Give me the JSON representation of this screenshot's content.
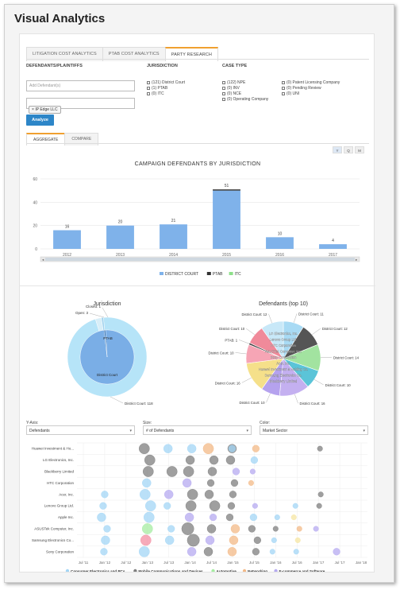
{
  "app": {
    "title": "Visual Analytics"
  },
  "tabs": [
    {
      "label": "LITIGATION COST ANALYTICS",
      "active": false
    },
    {
      "label": "PTAB COST ANALYTICS",
      "active": false
    },
    {
      "label": "PARTY RESEARCH",
      "active": true
    }
  ],
  "filters": {
    "defendants_heading": "DEFENDANTS/PLAINTIFFS",
    "jurisdiction_heading": "JURISDICTION",
    "case_type_heading": "CASE TYPE",
    "add_placeholder": "Add Defendant(s)",
    "selected_party": "IP Edge LLC",
    "chip_remove": "×",
    "jurisdiction_options": [
      "(121) District Court",
      "(1) PTAB",
      "(0) ITC"
    ],
    "case_type_col1": [
      "(122) NPE",
      "(0) INV",
      "(0) NCE",
      "(0) Operating Company"
    ],
    "case_type_col2": [
      "(0) Patent Licensing Company",
      "(0) Pending Review",
      "(0) UNI"
    ],
    "analyze_label": "Analyze"
  },
  "subtabs": [
    {
      "label": "AGGREGATE",
      "active": true
    },
    {
      "label": "COMPARE",
      "active": false
    }
  ],
  "period_buttons": [
    "Y",
    "Q",
    "M"
  ],
  "bar_chart": {
    "title": "CAMPAIGN DEFENDANTS BY JURISDICTION",
    "legend": [
      "DISTRICT COURT",
      "PTAB",
      "ITC"
    ]
  },
  "pie_left": {
    "title": "Jurisdiction"
  },
  "pie_right": {
    "title": "Defendants (top 10)"
  },
  "bubble_controls": {
    "y_axis_label": "Y-Axis:",
    "y_axis_value": "Defendants",
    "size_label": "Size:",
    "size_value": "# of Defendants",
    "color_label": "Color:",
    "color_value": "Market Sector"
  },
  "colors": {
    "district": "#7fb2ea",
    "ptab": "#333333",
    "itc": "#8ee08a",
    "pie_outer": "#b6e4f8",
    "pie_inner": "#7aaee6"
  },
  "chart_data": [
    {
      "type": "bar",
      "title": "CAMPAIGN DEFENDANTS BY JURISDICTION",
      "categories": [
        "2012",
        "2013",
        "2014",
        "2015",
        "2016",
        "2017"
      ],
      "series": [
        {
          "name": "DISTRICT COURT",
          "values": [
            16,
            20,
            21,
            50,
            10,
            4
          ]
        },
        {
          "name": "PTAB",
          "values": [
            0,
            0,
            0,
            1,
            0,
            0
          ]
        },
        {
          "name": "ITC",
          "values": [
            0,
            0,
            0,
            0,
            0,
            0
          ]
        }
      ],
      "totals": [
        "16",
        "20",
        "21",
        "51",
        "10",
        "4"
      ],
      "y_ticks": [
        "0",
        "20",
        "40",
        "60"
      ],
      "ylim": [
        0,
        60
      ],
      "legend_position": "bottom"
    },
    {
      "type": "pie",
      "title": "Jurisdiction",
      "outer": [
        {
          "label": "District Court: 118",
          "value": 118
        },
        {
          "label": "Open: 3",
          "value": 3
        },
        {
          "label": "Closed: 1",
          "value": 1
        }
      ],
      "inner": [
        {
          "label": "District Court",
          "value": 121
        },
        {
          "label": "PTAB",
          "value": 1
        }
      ]
    },
    {
      "type": "pie",
      "title": "Defendants (top 10)",
      "slices": [
        {
          "label": "District Court: 11",
          "value": 11,
          "color": "#a8daf4",
          "inner": ""
        },
        {
          "label": "District Court: 12",
          "value": 12,
          "color": "#555555",
          "inner": "LG Electronics, Inc."
        },
        {
          "label": "District Court: 14",
          "value": 14,
          "color": "#a2e3a0",
          "inner": "Lenovo Group Ltd."
        },
        {
          "label": "District Court: 10",
          "value": 10,
          "color": "#5bc4d8",
          "inner": "HTC Corporation"
        },
        {
          "label": "District Court: 16",
          "value": 16,
          "color": "#c4b0f0",
          "inner": "ASUSTek Computer, Inc."
        },
        {
          "label": "District Court: 10",
          "value": 10,
          "color": "#b5a2ee",
          "inner": "Sony Corporation"
        },
        {
          "label": "District Court: 16",
          "value": 16,
          "color": "#f5e08a",
          "inner": "Acer, Inc."
        },
        {
          "label": "District Court: 10",
          "value": 10,
          "color": "#f6a5b5",
          "inner": "Huawei Investment & Holding Co."
        },
        {
          "label": "PTAB: 1",
          "value": 1,
          "color": "#444444",
          "inner": ""
        },
        {
          "label": "District Court: 10",
          "value": 10,
          "color": "#f08a9a",
          "inner": "Samsung Electronics Co."
        },
        {
          "label": "District Court: 12",
          "value": 12,
          "color": "#c8e8f8",
          "inner": "Blackberry Limited"
        }
      ]
    },
    {
      "type": "scatter",
      "x_ticks": [
        "Jul '11",
        "Jan '12",
        "Jul '12",
        "Jan '13",
        "Jul '13",
        "Jan '14",
        "Jul '14",
        "Jan '15",
        "Jul '15",
        "Jan '16",
        "Jul '16",
        "Jan '17",
        "Jul '17",
        "Jan '18"
      ],
      "categories": [
        "Huawei Investment & Ho...",
        "LG Electronics, Inc.",
        "Blackberry Limited",
        "HTC Corporation",
        "Acer, Inc.",
        "Lenovo Group Ltd.",
        "Apple Inc.",
        "ASUSTek Computer, Inc.",
        "Samsung Electronics Co...",
        "Sony Corporation"
      ],
      "series": [
        {
          "name": "Consumer Electronics and PCs",
          "color": "#a3d5f5"
        },
        {
          "name": "Mobile Communications and Devices",
          "color": "#7f7f7f"
        },
        {
          "name": "Automotive",
          "color": "#a6eca2"
        },
        {
          "name": "Networking",
          "color": "#f3b987"
        },
        {
          "name": "E-commerce and Software",
          "color": "#b5aaf0"
        },
        {
          "name": "Media Content and Distribution",
          "color": "#f48fa3"
        },
        {
          "name": "Semiconductors",
          "color": "#f6e6a3"
        }
      ],
      "points": [
        {
          "x": "Jan '13",
          "row": 0,
          "size": 6,
          "sector": 1
        },
        {
          "x": "Jul '13",
          "row": 0,
          "size": 5,
          "sector": 0
        },
        {
          "x": "Jan '14",
          "row": 0,
          "size": 5,
          "sector": 0
        },
        {
          "x": "Jul '14",
          "row": 0,
          "size": 6,
          "sector": 3
        },
        {
          "x": "Jan '15",
          "row": 0,
          "size": 5,
          "sector": 1
        },
        {
          "x": "Jan '15",
          "row": 0,
          "size": 4,
          "sector": 0
        },
        {
          "x": "Jul '15",
          "row": 0,
          "size": 4,
          "sector": 3
        },
        {
          "x": "Jan '17",
          "row": 0,
          "size": 3,
          "sector": 1
        },
        {
          "x": "Jan '13",
          "row": 1,
          "size": 6,
          "sector": 1
        },
        {
          "x": "Jan '14",
          "row": 1,
          "size": 5,
          "sector": 1
        },
        {
          "x": "Jul '14",
          "row": 1,
          "size": 5,
          "sector": 1
        },
        {
          "x": "Jan '15",
          "row": 1,
          "size": 5,
          "sector": 1
        },
        {
          "x": "Jul '15",
          "row": 1,
          "size": 4,
          "sector": 0
        },
        {
          "x": "Jan '13",
          "row": 2,
          "size": 6,
          "sector": 1
        },
        {
          "x": "Jul '13",
          "row": 2,
          "size": 6,
          "sector": 1
        },
        {
          "x": "Jan '14",
          "row": 2,
          "size": 6,
          "sector": 1
        },
        {
          "x": "Jul '14",
          "row": 2,
          "size": 5,
          "sector": 1
        },
        {
          "x": "Jan '15",
          "row": 2,
          "size": 4,
          "sector": 4
        },
        {
          "x": "Jul '15",
          "row": 2,
          "size": 3,
          "sector": 4
        },
        {
          "x": "Jan '13",
          "row": 3,
          "size": 5,
          "sector": 0
        },
        {
          "x": "Jan '14",
          "row": 3,
          "size": 5,
          "sector": 4
        },
        {
          "x": "Jul '14",
          "row": 3,
          "size": 4,
          "sector": 1
        },
        {
          "x": "Jan '15",
          "row": 3,
          "size": 4,
          "sector": 1
        },
        {
          "x": "Jul '15",
          "row": 3,
          "size": 3,
          "sector": 3
        },
        {
          "x": "Jan '12",
          "row": 4,
          "size": 4,
          "sector": 0
        },
        {
          "x": "Jan '13",
          "row": 4,
          "size": 6,
          "sector": 0
        },
        {
          "x": "Jul '13",
          "row": 4,
          "size": 5,
          "sector": 4
        },
        {
          "x": "Jan '14",
          "row": 4,
          "size": 6,
          "sector": 1
        },
        {
          "x": "Jul '14",
          "row": 4,
          "size": 5,
          "sector": 1
        },
        {
          "x": "Jan '15",
          "row": 4,
          "size": 4,
          "sector": 1
        },
        {
          "x": "Jan '17",
          "row": 4,
          "size": 3,
          "sector": 1
        },
        {
          "x": "Jan '12",
          "row": 5,
          "size": 4,
          "sector": 0
        },
        {
          "x": "Jan '13",
          "row": 5,
          "size": 6,
          "sector": 0
        },
        {
          "x": "Jul '13",
          "row": 5,
          "size": 4,
          "sector": 0
        },
        {
          "x": "Jan '14",
          "row": 5,
          "size": 6,
          "sector": 1
        },
        {
          "x": "Jul '14",
          "row": 5,
          "size": 6,
          "sector": 1
        },
        {
          "x": "Jan '15",
          "row": 5,
          "size": 4,
          "sector": 1
        },
        {
          "x": "Jul '15",
          "row": 5,
          "size": 3,
          "sector": 4
        },
        {
          "x": "Jul '16",
          "row": 5,
          "size": 3,
          "sector": 0
        },
        {
          "x": "Jan '17",
          "row": 5,
          "size": 3,
          "sector": 1
        },
        {
          "x": "Jan '12",
          "row": 6,
          "size": 5,
          "sector": 0
        },
        {
          "x": "Jan '13",
          "row": 6,
          "size": 6,
          "sector": 0
        },
        {
          "x": "Jan '14",
          "row": 6,
          "size": 5,
          "sector": 4
        },
        {
          "x": "Jul '14",
          "row": 6,
          "size": 4,
          "sector": 4
        },
        {
          "x": "Jan '15",
          "row": 6,
          "size": 4,
          "sector": 1
        },
        {
          "x": "Jul '15",
          "row": 6,
          "size": 4,
          "sector": 0
        },
        {
          "x": "Jan '16",
          "row": 6,
          "size": 3,
          "sector": 0
        },
        {
          "x": "Jul '16",
          "row": 6,
          "size": 3,
          "sector": 6
        },
        {
          "x": "Jan '12",
          "row": 7,
          "size": 4,
          "sector": 0
        },
        {
          "x": "Jan '13",
          "row": 7,
          "size": 6,
          "sector": 2
        },
        {
          "x": "Jul '13",
          "row": 7,
          "size": 4,
          "sector": 0
        },
        {
          "x": "Jan '14",
          "row": 7,
          "size": 7,
          "sector": 1
        },
        {
          "x": "Jul '14",
          "row": 7,
          "size": 5,
          "sector": 1
        },
        {
          "x": "Jan '15",
          "row": 7,
          "size": 5,
          "sector": 3
        },
        {
          "x": "Jul '15",
          "row": 7,
          "size": 4,
          "sector": 1
        },
        {
          "x": "Jan '16",
          "row": 7,
          "size": 3,
          "sector": 1
        },
        {
          "x": "Jul '16",
          "row": 7,
          "size": 3,
          "sector": 3
        },
        {
          "x": "Jan '17",
          "row": 7,
          "size": 3,
          "sector": 4
        },
        {
          "x": "Jan '12",
          "row": 8,
          "size": 5,
          "sector": 0
        },
        {
          "x": "Jan '13",
          "row": 8,
          "size": 6,
          "sector": 5
        },
        {
          "x": "Jul '13",
          "row": 8,
          "size": 5,
          "sector": 0
        },
        {
          "x": "Jan '14",
          "row": 8,
          "size": 7,
          "sector": 1
        },
        {
          "x": "Jul '14",
          "row": 8,
          "size": 5,
          "sector": 4
        },
        {
          "x": "Jan '15",
          "row": 8,
          "size": 5,
          "sector": 3
        },
        {
          "x": "Jul '15",
          "row": 8,
          "size": 4,
          "sector": 1
        },
        {
          "x": "Jan '16",
          "row": 8,
          "size": 3,
          "sector": 0
        },
        {
          "x": "Jul '16",
          "row": 8,
          "size": 3,
          "sector": 6
        },
        {
          "x": "Jan '12",
          "row": 9,
          "size": 4,
          "sector": 0
        },
        {
          "x": "Jan '13",
          "row": 9,
          "size": 6,
          "sector": 0
        },
        {
          "x": "Jan '14",
          "row": 9,
          "size": 5,
          "sector": 4
        },
        {
          "x": "Jul '14",
          "row": 9,
          "size": 5,
          "sector": 1
        },
        {
          "x": "Jan '15",
          "row": 9,
          "size": 5,
          "sector": 3
        },
        {
          "x": "Jul '15",
          "row": 9,
          "size": 4,
          "sector": 1
        },
        {
          "x": "Jan '16",
          "row": 9,
          "size": 3,
          "sector": 0
        },
        {
          "x": "Jul '16",
          "row": 9,
          "size": 3,
          "sector": 0
        },
        {
          "x": "Jul '17",
          "row": 9,
          "size": 4,
          "sector": 4
        }
      ]
    }
  ]
}
